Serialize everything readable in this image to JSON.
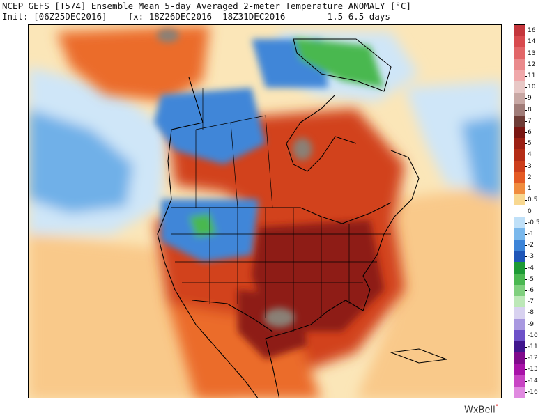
{
  "header": {
    "title": "NCEP GEFS [T574] Ensemble Mean 5-day Averaged 2-meter Temperature ANOMALY [°C]",
    "init_line": "Init: [06Z25DEC2016] -- fx: 18Z26DEC2016--18Z31DEC2016        1.5-6.5 days"
  },
  "legend": {
    "unit": "°C",
    "levels": [
      {
        "label": "16",
        "color": "#c4363c"
      },
      {
        "label": "14",
        "color": "#d84a4e"
      },
      {
        "label": "13",
        "color": "#e26668"
      },
      {
        "label": "12",
        "color": "#ea8a8c"
      },
      {
        "label": "11",
        "color": "#f0a8aa"
      },
      {
        "label": "10",
        "color": "#e8c8c6"
      },
      {
        "label": "9",
        "color": "#c8a8a4"
      },
      {
        "label": "8",
        "color": "#a07c78"
      },
      {
        "label": "7",
        "color": "#6e3c36"
      },
      {
        "label": "6",
        "color": "#7a1612"
      },
      {
        "label": "5",
        "color": "#9c2014"
      },
      {
        "label": "4",
        "color": "#b42c16"
      },
      {
        "label": "3",
        "color": "#cc3e1c"
      },
      {
        "label": "2",
        "color": "#e45a24"
      },
      {
        "label": "1",
        "color": "#f08c3e"
      },
      {
        "label": "0.5",
        "color": "#f8d890"
      },
      {
        "label": "0",
        "color": "#ffffff"
      },
      {
        "label": "-0.5",
        "color": "#bfe0f8"
      },
      {
        "label": "-1",
        "color": "#7ab8ec"
      },
      {
        "label": "-2",
        "color": "#3c84d8"
      },
      {
        "label": "-3",
        "color": "#1f56b8"
      },
      {
        "label": "-4",
        "color": "#1c9a34"
      },
      {
        "label": "-5",
        "color": "#4ab850"
      },
      {
        "label": "-6",
        "color": "#80d07e"
      },
      {
        "label": "-7",
        "color": "#bde8b8"
      },
      {
        "label": "-8",
        "color": "#d8d2f0"
      },
      {
        "label": "-9",
        "color": "#a898e0"
      },
      {
        "label": "-10",
        "color": "#6c50c8"
      },
      {
        "label": "-11",
        "color": "#40168e"
      },
      {
        "label": "-12",
        "color": "#800a8c"
      },
      {
        "label": "-13",
        "color": "#a812a8"
      },
      {
        "label": "-14",
        "color": "#c844c4"
      },
      {
        "label": "-16",
        "color": "#e08ae0"
      }
    ]
  },
  "map_colors": {
    "ocean_warm": "#f9c98a",
    "ocean_mild": "#fbe6b8",
    "ocean_cool": "#cfe6f8",
    "ocean_cold": "#6fb0e8",
    "land_hot": "#8e1e14",
    "land_warm": "#d2421c",
    "land_mild": "#eb6c2c",
    "cold": "#3f86d8",
    "very_cold": "#4ab850",
    "extreme": "#8a8076",
    "border": "#000000"
  },
  "brand": {
    "name": "WxBell",
    "mark": "°"
  }
}
